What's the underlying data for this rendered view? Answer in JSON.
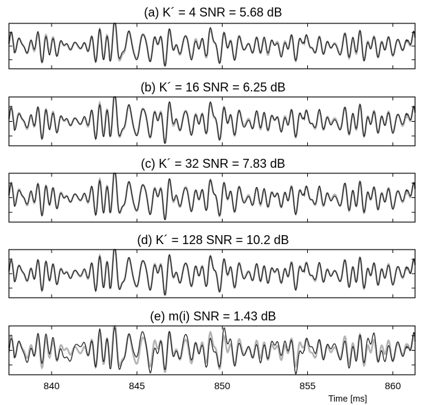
{
  "chart_data": {
    "type": "line",
    "xlabel": "Time [ms]",
    "xlim": [
      837.5,
      861.3
    ],
    "xticks": [
      "840",
      "845",
      "850",
      "855",
      "860"
    ],
    "xtick_values": [
      840,
      845,
      850,
      855,
      860
    ],
    "series_styles": {
      "original": "#b4b4b4",
      "reconstruction": "#1a1a1a"
    },
    "panels": [
      {
        "title": "(a)  K´ = 4    SNR = 5.68 dB",
        "snr_db": 5.68
      },
      {
        "title": "(b)  K´ = 16    SNR = 6.25 dB",
        "snr_db": 6.25
      },
      {
        "title": "(c)  K´ = 32    SNR = 7.83 dB",
        "snr_db": 7.83
      },
      {
        "title": "(d)  K´ = 128    SNR = 10.2 dB",
        "snr_db": 10.2
      },
      {
        "title": "(e)  m(i)    SNR = 1.43 dB",
        "snr_db": 1.43
      }
    ]
  }
}
